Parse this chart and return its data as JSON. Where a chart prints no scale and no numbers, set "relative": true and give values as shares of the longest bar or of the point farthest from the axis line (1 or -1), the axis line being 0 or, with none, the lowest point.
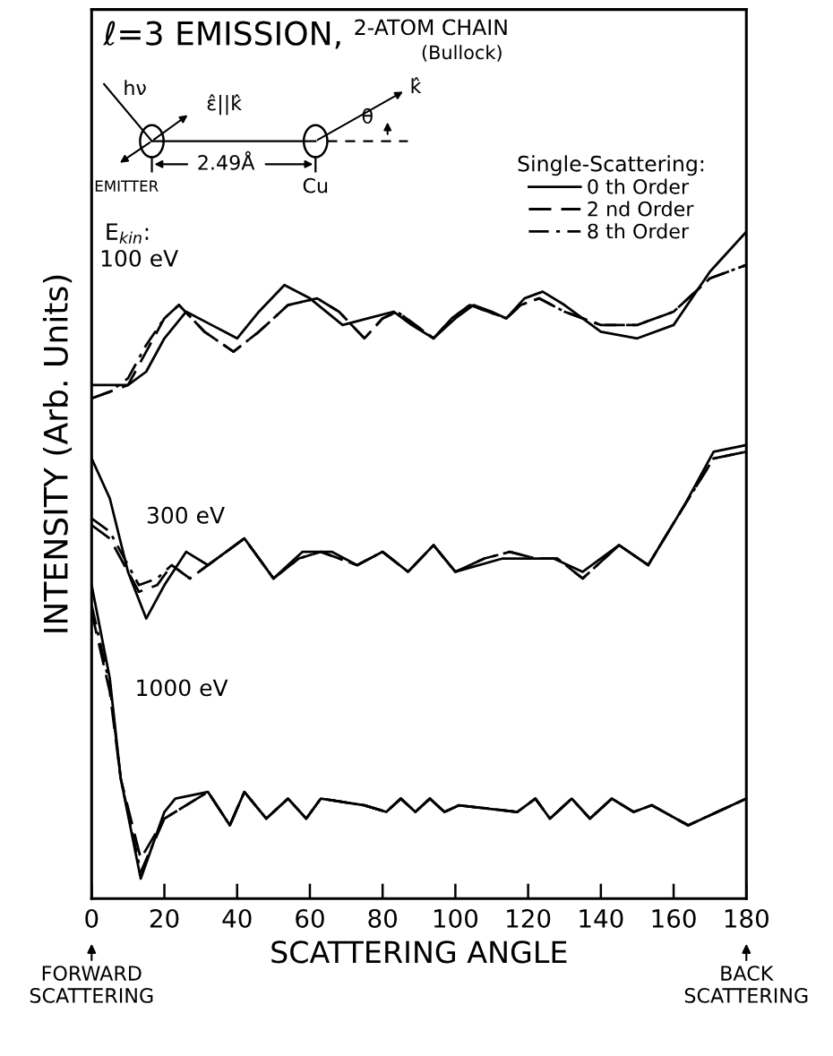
{
  "chart_data": {
    "type": "line",
    "title": "ℓ=3 EMISSION,",
    "subtitle": "2-ATOM CHAIN",
    "xlabel": "SCATTERING ANGLE",
    "ylabel": "INTENSITY (Arb. Units)",
    "legend_title": "Single-Scattering:",
    "legend": "top right",
    "relative": true,
    "grid": false,
    "marker": "none",
    "xlim": [
      0,
      180
    ],
    "xticks": [
      0,
      20,
      40,
      60,
      80,
      100,
      120,
      140,
      160,
      180
    ],
    "series": [
      {
        "name": "0 th Order",
        "color": "#000000",
        "line_style": "solid",
        "x": [
          0,
          5,
          10,
          15,
          20,
          26,
          33,
          40,
          46,
          53,
          60,
          69,
          76,
          83,
          88,
          94,
          100,
          105,
          110,
          114,
          119,
          124,
          130,
          140,
          150,
          160,
          170,
          180
        ],
        "values": [
          0.77,
          0.77,
          0.77,
          0.79,
          0.84,
          0.88,
          0.86,
          0.84,
          0.88,
          0.92,
          0.9,
          0.86,
          0.87,
          0.88,
          0.86,
          0.84,
          0.87,
          0.89,
          0.88,
          0.87,
          0.9,
          0.91,
          0.89,
          0.85,
          0.84,
          0.86,
          0.94,
          1.0
        ]
      },
      {
        "name": "2 nd Order",
        "color": "#000000",
        "line_style": "dashed",
        "x": [
          0,
          5,
          10,
          15,
          20,
          24,
          31,
          39,
          46,
          54,
          62,
          68,
          75,
          80,
          84,
          89,
          94,
          99,
          104,
          109,
          114,
          118,
          123,
          130,
          140,
          150,
          160,
          170,
          180
        ],
        "values": [
          0.75,
          0.76,
          0.77,
          0.82,
          0.87,
          0.89,
          0.85,
          0.82,
          0.85,
          0.89,
          0.9,
          0.88,
          0.84,
          0.87,
          0.88,
          0.86,
          0.84,
          0.87,
          0.89,
          0.88,
          0.87,
          0.89,
          0.9,
          0.88,
          0.86,
          0.86,
          0.88,
          0.93,
          0.95
        ]
      },
      {
        "name": "8 th Order",
        "color": "#000000",
        "line_style": "dashdot",
        "x": [
          0,
          5,
          10,
          15,
          20,
          24,
          31,
          39,
          46,
          54,
          62,
          68,
          75,
          80,
          84,
          89,
          94,
          99,
          104,
          109,
          114,
          118,
          123,
          130,
          140,
          150,
          160,
          170,
          180
        ],
        "values": [
          0.75,
          0.76,
          0.78,
          0.83,
          0.87,
          0.89,
          0.85,
          0.82,
          0.85,
          0.89,
          0.9,
          0.88,
          0.84,
          0.87,
          0.88,
          0.86,
          0.84,
          0.87,
          0.89,
          0.88,
          0.87,
          0.89,
          0.9,
          0.88,
          0.86,
          0.86,
          0.88,
          0.93,
          0.95
        ]
      },
      {
        "color": "#000000",
        "line_style": "solid",
        "x": [
          0,
          5,
          10,
          15,
          20,
          26,
          32,
          42,
          50,
          58,
          66,
          73,
          80,
          87,
          94,
          100,
          113,
          127,
          135,
          145,
          153,
          163,
          171,
          180
        ],
        "values": [
          0.66,
          0.6,
          0.49,
          0.42,
          0.47,
          0.52,
          0.5,
          0.54,
          0.48,
          0.52,
          0.52,
          0.5,
          0.52,
          0.49,
          0.53,
          0.49,
          0.51,
          0.51,
          0.49,
          0.53,
          0.5,
          0.59,
          0.67,
          0.68
        ]
      },
      {
        "color": "#000000",
        "line_style": "dashed",
        "x": [
          0,
          5,
          10,
          13,
          18,
          22,
          27,
          32,
          42,
          50,
          57,
          63,
          68,
          73,
          80,
          87,
          94,
          100,
          108,
          115,
          122,
          128,
          135,
          145,
          153,
          163,
          171,
          180
        ],
        "values": [
          0.56,
          0.54,
          0.49,
          0.46,
          0.47,
          0.5,
          0.48,
          0.5,
          0.54,
          0.48,
          0.51,
          0.52,
          0.51,
          0.5,
          0.52,
          0.49,
          0.53,
          0.49,
          0.51,
          0.52,
          0.51,
          0.51,
          0.48,
          0.53,
          0.5,
          0.59,
          0.66,
          0.67
        ]
      },
      {
        "color": "#000000",
        "line_style": "dashdot",
        "x": [
          0,
          5,
          10,
          13,
          18,
          22,
          27,
          32,
          42,
          50,
          57,
          63,
          68,
          73,
          80,
          87,
          94,
          100,
          108,
          115,
          122,
          128,
          135,
          145,
          153,
          163,
          171,
          180
        ],
        "values": [
          0.57,
          0.55,
          0.5,
          0.47,
          0.48,
          0.5,
          0.48,
          0.5,
          0.54,
          0.48,
          0.51,
          0.52,
          0.51,
          0.5,
          0.52,
          0.49,
          0.53,
          0.49,
          0.51,
          0.52,
          0.51,
          0.51,
          0.48,
          0.53,
          0.5,
          0.59,
          0.66,
          0.67
        ]
      },
      {
        "color": "#000000",
        "line_style": "solid",
        "x": [
          0,
          5,
          8,
          13.5,
          20,
          23,
          32,
          38,
          42,
          48,
          54,
          59,
          63,
          75,
          81,
          85,
          89,
          93,
          97,
          101,
          117,
          122,
          126,
          132,
          137,
          143,
          149,
          154,
          164,
          180
        ],
        "values": [
          0.47,
          0.33,
          0.18,
          0.03,
          0.13,
          0.15,
          0.16,
          0.11,
          0.16,
          0.12,
          0.15,
          0.12,
          0.15,
          0.14,
          0.13,
          0.15,
          0.13,
          0.15,
          0.13,
          0.14,
          0.13,
          0.15,
          0.12,
          0.15,
          0.12,
          0.15,
          0.13,
          0.14,
          0.11,
          0.15
        ]
      },
      {
        "color": "#000000",
        "line_style": "dashed",
        "x": [
          0,
          5,
          8,
          13.5,
          20,
          23,
          32,
          38,
          42,
          48,
          54,
          59,
          63,
          75,
          81,
          85,
          89,
          93,
          97,
          101,
          117,
          122,
          126,
          132,
          137,
          143,
          149,
          154,
          164,
          180
        ],
        "values": [
          0.43,
          0.31,
          0.18,
          0.06,
          0.12,
          0.13,
          0.16,
          0.11,
          0.16,
          0.12,
          0.15,
          0.12,
          0.15,
          0.14,
          0.13,
          0.15,
          0.13,
          0.15,
          0.13,
          0.14,
          0.13,
          0.15,
          0.12,
          0.15,
          0.12,
          0.15,
          0.13,
          0.14,
          0.11,
          0.15
        ]
      },
      {
        "color": "#000000",
        "line_style": "dashdot",
        "x": [
          0,
          5,
          8,
          13.5,
          20,
          23,
          32,
          38,
          42,
          48,
          54,
          59,
          63,
          75,
          81,
          85,
          89,
          93,
          97,
          101,
          117,
          122,
          126,
          132,
          137,
          143,
          149,
          154,
          164,
          180
        ],
        "values": [
          0.44,
          0.32,
          0.18,
          0.04,
          0.12,
          0.13,
          0.16,
          0.11,
          0.16,
          0.12,
          0.15,
          0.12,
          0.15,
          0.14,
          0.13,
          0.15,
          0.13,
          0.15,
          0.13,
          0.14,
          0.13,
          0.15,
          0.12,
          0.15,
          0.12,
          0.15,
          0.13,
          0.14,
          0.11,
          0.15
        ]
      }
    ],
    "annotations": [
      "100 eV",
      "300 eV",
      "1000 eV",
      "E$_{kin}$:",
      "(Bullock)",
      "hν",
      "ε̂||k̂",
      "k̂",
      "θ",
      "EMITTER",
      "2.49Å",
      "Cu",
      "FORWARD\nSCATTERING",
      "BACK\nSCATTERING"
    ]
  }
}
